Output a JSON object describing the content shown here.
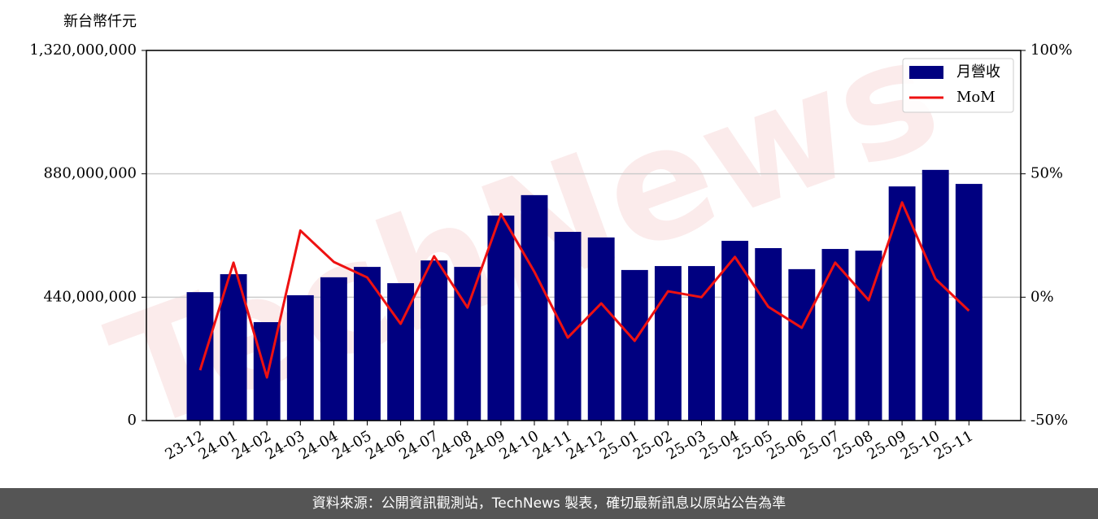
{
  "chart_data": {
    "type": "bar_line",
    "unit_label": "新台幣仟元",
    "watermark": "TechNews",
    "categories": [
      "23-12",
      "24-01",
      "24-02",
      "24-03",
      "24-04",
      "24-05",
      "24-06",
      "24-07",
      "24-08",
      "24-09",
      "24-10",
      "24-11",
      "24-12",
      "25-01",
      "25-02",
      "25-03",
      "25-04",
      "25-05",
      "25-06",
      "25-07",
      "25-08",
      "25-09",
      "25-10",
      "25-11"
    ],
    "series": [
      {
        "name": "月營收",
        "kind": "bar",
        "color": "#000080",
        "values": [
          458000000,
          522000000,
          351000000,
          447000000,
          511000000,
          548000000,
          490000000,
          571000000,
          548000000,
          731000000,
          804000000,
          673000000,
          653000000,
          537000000,
          551000000,
          551000000,
          641000000,
          615000000,
          540000000,
          612000000,
          606000000,
          835000000,
          894000000,
          844000000
        ]
      },
      {
        "name": "MoM",
        "kind": "line",
        "axis": "y2",
        "color": "#ee1111",
        "values": [
          -29.6,
          14,
          -32.5,
          27,
          14.3,
          8,
          -10.8,
          16.6,
          -4.2,
          33.7,
          10.3,
          -16.4,
          -2.5,
          -17.7,
          2.4,
          0,
          16.3,
          -3.9,
          -12.4,
          14,
          -1.2,
          38.4,
          7.4,
          -5.5
        ]
      }
    ],
    "ylim": [
      0,
      1320000000
    ],
    "yticks": [
      0,
      {
        "value": 440000000,
        "label": "440,000,000"
      },
      {
        "value": 880000000,
        "label": "880,000,000"
      },
      {
        "value": 1320000000,
        "label": "1,320,000,000"
      }
    ],
    "y2lim": [
      -50,
      100
    ],
    "y2ticks": [
      {
        "value": -50,
        "label": "-50%"
      },
      {
        "value": 0,
        "label": "0%"
      },
      {
        "value": 50,
        "label": "50%"
      },
      {
        "value": 100,
        "label": "100%"
      }
    ],
    "grid": true,
    "legend": "upper right"
  },
  "footer": "資料來源：公開資訊觀測站，TechNews 製表，確切最新訊息以原站公告為準"
}
